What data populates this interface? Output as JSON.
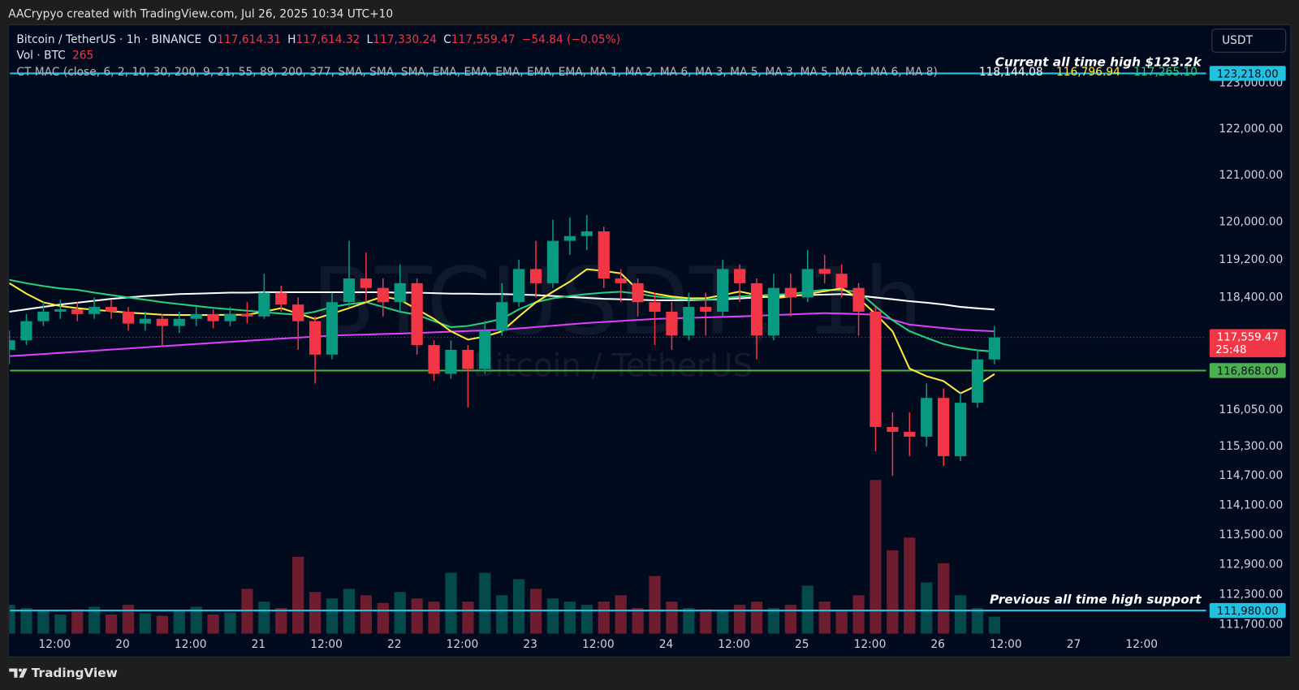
{
  "top_bar": "AACrypyo created with TradingView.com, Jul 26, 2025 10:34 UTC+10",
  "footer": "TradingView",
  "header": {
    "symbol": "Bitcoin / TetherUS · 1h · BINANCE",
    "ohlc": [
      {
        "label": "O",
        "value": "117,614.31"
      },
      {
        "label": "H",
        "value": "117,614.32"
      },
      {
        "label": "L",
        "value": "117,330.24"
      },
      {
        "label": "C",
        "value": "117,559.47"
      }
    ],
    "change": "−54.84 (−0.05%)",
    "volume_label": "Vol · BTC",
    "indicator": "CT MAC (close, 6, 2, 10, 30, 200, 9, 21, 55, 89, 200, 377, SMA, SMA, SMA, EMA, EMA, EMA, EMA, EMA, MA 1, MA 2, MA 6, MA 3, MA 5, MA 3, MA 5, MA 6, MA 6, MA 8)",
    "indicator_values": [
      {
        "text": "118,144.08",
        "color": "#ffffff"
      },
      {
        "text": "116,796.94",
        "color": "#ffeb3b"
      },
      {
        "text": "117,265.10",
        "color": "#26d07c"
      }
    ],
    "currency": "USDT"
  },
  "chart_data": {
    "type": "candlestick",
    "watermark": {
      "symbol": "BTCUSDT, 1h",
      "name": "Bitcoin / TetherUS"
    },
    "log_scale": true,
    "grid": false,
    "up_color": "#089981",
    "down_color": "#f23645",
    "x": [
      "19 04:00",
      "19 07:00",
      "19 10:00",
      "19 13:00",
      "19 16:00",
      "19 19:00",
      "19 22:00",
      "20 01:00",
      "20 04:00",
      "20 07:00",
      "20 10:00",
      "20 13:00",
      "20 16:00",
      "20 19:00",
      "20 22:00",
      "21 01:00",
      "21 04:00",
      "21 07:00",
      "21 10:00",
      "21 13:00",
      "21 16:00",
      "21 19:00",
      "21 22:00",
      "22 01:00",
      "22 04:00",
      "22 07:00",
      "22 10:00",
      "22 13:00",
      "22 16:00",
      "22 19:00",
      "22 22:00",
      "23 01:00",
      "23 04:00",
      "23 07:00",
      "23 10:00",
      "23 13:00",
      "23 16:00",
      "23 19:00",
      "23 22:00",
      "24 01:00",
      "24 04:00",
      "24 07:00",
      "24 10:00",
      "24 13:00",
      "24 16:00",
      "24 19:00",
      "24 22:00",
      "25 01:00",
      "25 04:00",
      "25 07:00",
      "25 10:00",
      "25 13:00",
      "25 16:00",
      "25 19:00",
      "25 22:00",
      "26 01:00",
      "26 04:00",
      "26 07:00",
      "26 10:00"
    ],
    "open": [
      117300,
      117500,
      117900,
      118100,
      118150,
      118050,
      118200,
      118100,
      117850,
      117950,
      117800,
      117950,
      118050,
      117900,
      118050,
      118000,
      118500,
      118250,
      117900,
      117200,
      118300,
      118800,
      118600,
      118300,
      118700,
      117400,
      116800,
      117300,
      116900,
      117700,
      118300,
      119000,
      118700,
      119600,
      119700,
      119800,
      118800,
      118700,
      118300,
      118100,
      117600,
      118200,
      118100,
      119000,
      118700,
      117600,
      118600,
      118400,
      119000,
      118900,
      118600,
      118100,
      115700,
      115600,
      115500,
      116300,
      115100,
      116200,
      117100
    ],
    "high": [
      117700,
      118050,
      118300,
      118350,
      118300,
      118400,
      118350,
      118200,
      118100,
      118050,
      118100,
      118200,
      118150,
      118200,
      118300,
      118900,
      118650,
      118400,
      118000,
      118500,
      119600,
      119350,
      118800,
      119100,
      118800,
      117500,
      117500,
      117400,
      117900,
      118700,
      119200,
      119600,
      120050,
      120100,
      120150,
      119900,
      119000,
      118800,
      118500,
      118300,
      118500,
      118500,
      119200,
      119100,
      118800,
      118900,
      118900,
      119400,
      119300,
      119100,
      118700,
      118200,
      116000,
      116000,
      116600,
      116500,
      116400,
      117300,
      117800
    ],
    "low": [
      117000,
      117400,
      117800,
      117950,
      117900,
      117950,
      117950,
      117700,
      117700,
      117400,
      117650,
      117800,
      117750,
      117800,
      117850,
      117950,
      118100,
      117300,
      116600,
      117100,
      118200,
      118300,
      118000,
      118100,
      117200,
      116650,
      116700,
      116100,
      116800,
      117600,
      118200,
      118400,
      118600,
      119300,
      119400,
      118600,
      118300,
      118000,
      117400,
      117300,
      117500,
      117600,
      118000,
      118300,
      117100,
      117500,
      118000,
      118300,
      118700,
      118400,
      117600,
      115200,
      114700,
      115100,
      115300,
      114900,
      115000,
      116100,
      117000
    ],
    "close": [
      117500,
      117900,
      118100,
      118150,
      118050,
      118200,
      118100,
      117850,
      117950,
      117800,
      117950,
      118050,
      117900,
      118050,
      118000,
      118500,
      118250,
      117900,
      117200,
      118300,
      118800,
      118600,
      118300,
      118700,
      117400,
      116800,
      117300,
      116900,
      117700,
      118300,
      119000,
      118700,
      119600,
      119700,
      119800,
      118800,
      118700,
      118300,
      118100,
      117600,
      118200,
      118100,
      119000,
      118700,
      117600,
      118600,
      118400,
      119000,
      118900,
      118600,
      118100,
      115700,
      115600,
      115500,
      116300,
      115100,
      116200,
      117100,
      117559.47
    ],
    "volume": {
      "ylim": [
        0,
        3000
      ],
      "values": [
        450,
        400,
        350,
        300,
        380,
        420,
        300,
        450,
        320,
        280,
        350,
        420,
        300,
        330,
        700,
        500,
        400,
        1200,
        650,
        550,
        700,
        600,
        480,
        650,
        550,
        500,
        950,
        500,
        950,
        600,
        850,
        700,
        550,
        500,
        450,
        500,
        600,
        400,
        900,
        500,
        400,
        380,
        350,
        450,
        500,
        400,
        450,
        750,
        500,
        350,
        600,
        2400,
        1300,
        1500,
        800,
        1100,
        600,
        400,
        265
      ]
    },
    "moving_averages": [
      {
        "color": "#ffffff",
        "values": [
          118100,
          118150,
          118200,
          118250,
          118290,
          118330,
          118370,
          118400,
          118430,
          118450,
          118470,
          118480,
          118490,
          118500,
          118500,
          118510,
          118510,
          118510,
          118510,
          118510,
          118510,
          118510,
          118510,
          118500,
          118500,
          118490,
          118480,
          118480,
          118470,
          118470,
          118460,
          118450,
          118430,
          118410,
          118390,
          118370,
          118360,
          118350,
          118340,
          118340,
          118340,
          118350,
          118360,
          118380,
          118400,
          118420,
          118440,
          118450,
          118460,
          118470,
          118440,
          118400,
          118360,
          118320,
          118290,
          118250,
          118200,
          118170,
          118144.08
        ]
      },
      {
        "color": "#e040fb",
        "values": [
          117168,
          117190,
          117213,
          117236,
          117259,
          117282,
          117305,
          117328,
          117352,
          117375,
          117398,
          117421,
          117444,
          117467,
          117490,
          117512,
          117534,
          117556,
          117578,
          117600,
          117610,
          117620,
          117631,
          117641,
          117652,
          117666,
          117680,
          117694,
          117708,
          117722,
          117750,
          117778,
          117806,
          117834,
          117862,
          117884,
          117905,
          117927,
          117948,
          117958,
          117969,
          117979,
          117990,
          118000,
          118014,
          118028,
          118042,
          118056,
          118070,
          118060,
          118050,
          118035,
          117930,
          117827,
          117792,
          117757,
          117722,
          117705,
          117687
        ]
      },
      {
        "color": "#26d07c",
        "values": [
          118770,
          118700,
          118640,
          118590,
          118560,
          118500,
          118450,
          118400,
          118350,
          118300,
          118260,
          118220,
          118180,
          118150,
          118120,
          118090,
          118060,
          118035,
          118100,
          118200,
          118260,
          118300,
          118200,
          118100,
          118035,
          117900,
          117774,
          117800,
          117870,
          117950,
          118150,
          118300,
          118380,
          118430,
          118470,
          118500,
          118520,
          118480,
          118420,
          118390,
          118360,
          118350,
          118380,
          118420,
          118440,
          118460,
          118470,
          118520,
          118560,
          118550,
          118520,
          118210,
          117920,
          117690,
          117550,
          117420,
          117340,
          117290,
          117265.1
        ]
      },
      {
        "color": "#ffeb3b",
        "values": [
          118700,
          118480,
          118296,
          118220,
          118174,
          118140,
          118110,
          118080,
          118060,
          118035,
          118030,
          118030,
          118030,
          118035,
          118035,
          118100,
          118174,
          118060,
          117948,
          118060,
          118174,
          118300,
          118419,
          118349,
          118150,
          117948,
          117687,
          117514,
          117580,
          117687,
          118000,
          118296,
          118520,
          118733,
          118996,
          118960,
          118909,
          118560,
          118480,
          118420,
          118384,
          118384,
          118450,
          118524,
          118450,
          118384,
          118420,
          118472,
          118530,
          118594,
          118384,
          118050,
          117687,
          116908,
          116750,
          116650,
          116394,
          116565,
          116796.94
        ]
      }
    ],
    "lines": [
      {
        "value": 123218,
        "label": "123,218.00",
        "color": "#22c1e0",
        "annotation": "Current all time high $123.2k"
      },
      {
        "value": 116868,
        "label": "116,868.00",
        "color": "#4caf50"
      },
      {
        "value": 111980,
        "label": "111,980.00",
        "color": "#22c1e0",
        "annotation": "Previous all time high support"
      }
    ],
    "last_price": {
      "value": 117559.47,
      "label": "117,559.47",
      "countdown": "25:48",
      "color": "#f23645"
    },
    "xlim": [
      "19 04:06",
      "27 23:24"
    ],
    "xticks": [
      {
        "value": "19 12:00",
        "label": "12:00"
      },
      {
        "value": "20 00:00",
        "label": "20"
      },
      {
        "value": "20 12:00",
        "label": "12:00"
      },
      {
        "value": "21 00:00",
        "label": "21"
      },
      {
        "value": "21 12:00",
        "label": "12:00"
      },
      {
        "value": "22 00:00",
        "label": "22"
      },
      {
        "value": "22 12:00",
        "label": "12:00"
      },
      {
        "value": "23 00:00",
        "label": "23"
      },
      {
        "value": "23 12:00",
        "label": "12:00"
      },
      {
        "value": "24 00:00",
        "label": "24"
      },
      {
        "value": "24 12:00",
        "label": "12:00"
      },
      {
        "value": "25 00:00",
        "label": "25"
      },
      {
        "value": "25 12:00",
        "label": "12:00"
      },
      {
        "value": "26 00:00",
        "label": "26"
      },
      {
        "value": "26 12:00",
        "label": "12:00"
      },
      {
        "value": "27 00:00",
        "label": "27"
      },
      {
        "value": "27 12:00",
        "label": "12:00"
      }
    ],
    "ylim": [
      111519,
      124288
    ],
    "yticks": [
      {
        "value": 123000,
        "label": "123,000.00"
      },
      {
        "value": 122000,
        "label": "122,000.00"
      },
      {
        "value": 121000,
        "label": "121,000.00"
      },
      {
        "value": 120000,
        "label": "120,000.00"
      },
      {
        "value": 119200,
        "label": "119,200.00"
      },
      {
        "value": 118400,
        "label": "118,400.00"
      },
      {
        "value": 116050,
        "label": "116,050.00"
      },
      {
        "value": 115300,
        "label": "115,300.00"
      },
      {
        "value": 114700,
        "label": "114,700.00"
      },
      {
        "value": 114100,
        "label": "114,100.00"
      },
      {
        "value": 113500,
        "label": "113,500.00"
      },
      {
        "value": 112900,
        "label": "112,900.00"
      },
      {
        "value": 112300,
        "label": "112,300.00"
      },
      {
        "value": 111700,
        "label": "111,700.00"
      }
    ]
  }
}
